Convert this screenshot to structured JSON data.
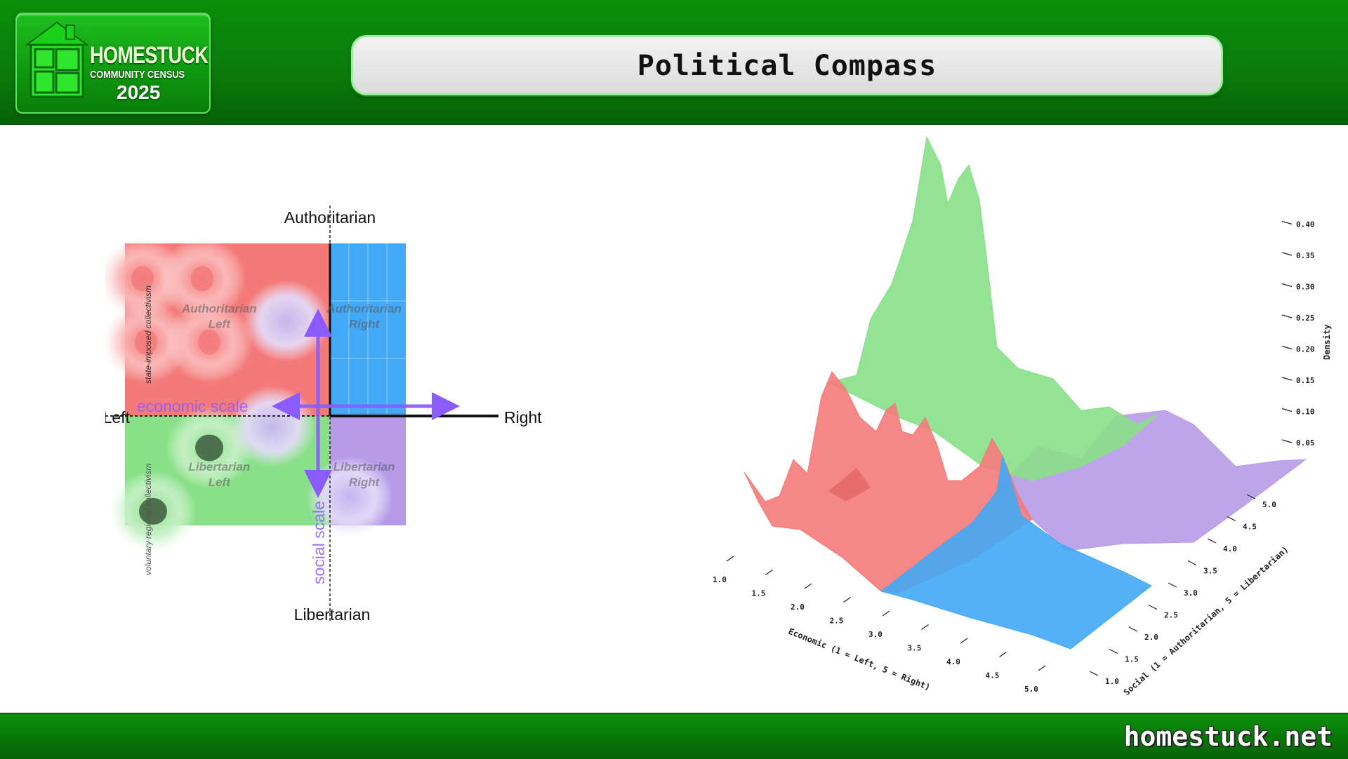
{
  "header": {
    "logo": {
      "line1": "HOMESTUCK",
      "line2": "COMMUNITY CENSUS",
      "line3": "2025"
    },
    "title": "Political Compass"
  },
  "footer": {
    "site": "homestuck.net"
  },
  "colors": {
    "header_green": "#0b7a0b",
    "authoritarian_left": "#f47a7a",
    "authoritarian_right": "#43a8f5",
    "libertarian_left": "#88e088",
    "libertarian_right": "#b79be8",
    "arrow": "#8a5cff"
  },
  "chart_data": [
    {
      "type": "heatmap",
      "axis_labels": {
        "top": "Authoritarian",
        "bottom": "Libertarian",
        "left": "Left",
        "right": "Right"
      },
      "side_labels": {
        "upper": "state-imposed collectivism",
        "lower": "voluntary regional collectivism"
      },
      "quadrant_labels": {
        "authoritarian_left": [
          "Authoritarian",
          "Left"
        ],
        "authoritarian_right": [
          "Authoritarian",
          "Right"
        ],
        "libertarian_left": [
          "Libertarian",
          "Left"
        ],
        "libertarian_right": [
          "Libertarian",
          "Right"
        ]
      },
      "arrow_labels": {
        "economic": "economic scale",
        "social": "social scale"
      },
      "density_points": [
        {
          "x": 1.25,
          "y": 1.5,
          "quadrant": "authoritarian_left",
          "level": 0.5
        },
        {
          "x": 2.1,
          "y": 1.5,
          "quadrant": "authoritarian_left",
          "level": 0.4
        },
        {
          "x": 1.3,
          "y": 2.4,
          "quadrant": "authoritarian_left",
          "level": 0.45
        },
        {
          "x": 2.2,
          "y": 2.4,
          "quadrant": "authoritarian_left",
          "level": 0.45
        },
        {
          "x": 2.2,
          "y": 3.9,
          "quadrant": "libertarian_left",
          "level": 0.95
        },
        {
          "x": 1.4,
          "y": 4.8,
          "quadrant": "libertarian_left",
          "level": 0.95
        },
        {
          "x": 3.3,
          "y": 2.1,
          "quadrant": "authoritarian_right",
          "level": 0.3
        },
        {
          "x": 3.1,
          "y": 3.6,
          "quadrant": "libertarian_right",
          "level": 0.45
        },
        {
          "x": 4.2,
          "y": 4.6,
          "quadrant": "libertarian_right",
          "level": 0.25
        }
      ]
    },
    {
      "type": "area",
      "surface": "3d-density",
      "zlabel": "Density",
      "xlabel": "Economic (1 = Left, 5 = Right)",
      "ylabel": "Social (1 = Authoritarian, 5 = Libertarian)",
      "x_ticks": [
        "1.0",
        "1.5",
        "2.0",
        "2.5",
        "3.0",
        "3.5",
        "4.0",
        "4.5",
        "5.0"
      ],
      "y_ticks": [
        "1.0",
        "1.5",
        "2.0",
        "2.5",
        "3.0",
        "3.5",
        "4.0",
        "4.5",
        "5.0"
      ],
      "z_ticks": [
        "0.05",
        "0.10",
        "0.15",
        "0.20",
        "0.25",
        "0.30",
        "0.35",
        "0.40"
      ],
      "zlim": [
        0,
        0.45
      ],
      "series": [
        {
          "quadrant": "libertarian_left",
          "color": "#8fe58f",
          "peak_density": 0.43
        },
        {
          "quadrant": "authoritarian_left",
          "color": "#f47a7a",
          "peak_density": 0.22
        },
        {
          "quadrant": "libertarian_right",
          "color": "#c0a2ec",
          "peak_density": 0.13
        },
        {
          "quadrant": "authoritarian_right",
          "color": "#4aaef7",
          "peak_density": 0.14
        }
      ]
    }
  ]
}
